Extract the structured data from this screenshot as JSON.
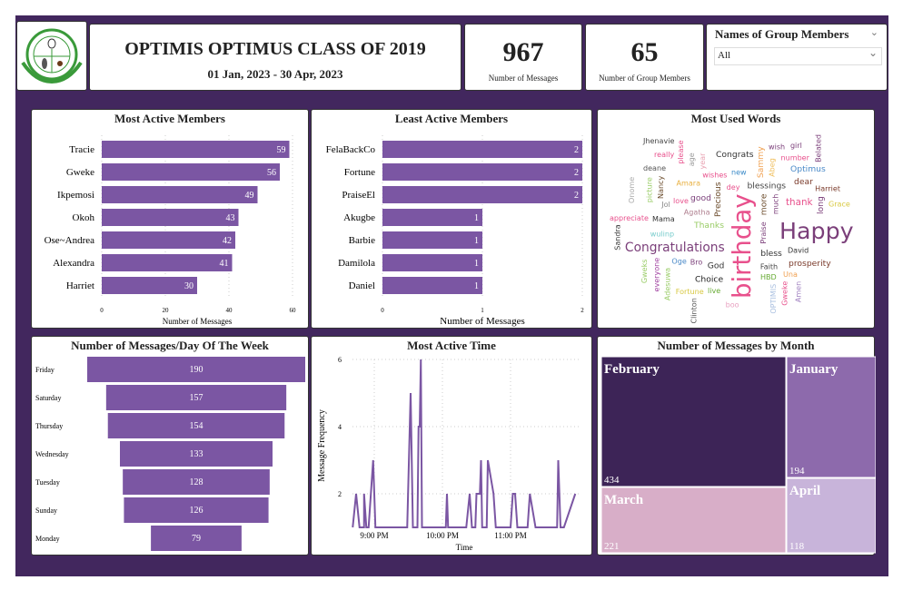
{
  "header": {
    "title": "OPTIMIS OPTIMUS CLASS OF 2019",
    "date_range": "01 Jan, 2023 - 30 Apr, 2023",
    "logo_text": "AEBSA UNIBEN"
  },
  "kpis": [
    {
      "value": "967",
      "label": "Number of Messages"
    },
    {
      "value": "65",
      "label": "Number of Group Members"
    }
  ],
  "slicer": {
    "title": "Names of Group Members",
    "value": "All"
  },
  "chart_data": [
    {
      "type": "bar",
      "orientation": "horizontal",
      "title": "Most Active Members",
      "xlabel": "Number of Messages",
      "categories": [
        "Tracie",
        "Gweke",
        "Ikpemosi",
        "Okoh",
        "Ose~Andrea",
        "Alexandra",
        "Harriet"
      ],
      "values": [
        59,
        56,
        49,
        43,
        42,
        41,
        30
      ],
      "xlim": [
        0,
        60
      ],
      "xticks": [
        0,
        20,
        40,
        60
      ],
      "color": "#7b56a3",
      "grid": true
    },
    {
      "type": "bar",
      "orientation": "horizontal",
      "title": "Least Active Members",
      "xlabel": "Number of Messages",
      "categories": [
        "FelaBackCo",
        "Fortune",
        "PraiseEl",
        "Akugbe",
        "Barbie",
        "Damilola",
        "Daniel"
      ],
      "values": [
        2,
        2,
        2,
        1,
        1,
        1,
        1
      ],
      "xlim": [
        0,
        2
      ],
      "xticks": [
        0,
        1,
        2
      ],
      "color": "#7b56a3",
      "grid": true
    },
    {
      "type": "bar",
      "orientation": "horizontal-funnel",
      "title": "Number of Messages/Day Of The Week",
      "categories": [
        "Friday",
        "Saturday",
        "Thursday",
        "Wednesday",
        "Tuesday",
        "Sunday",
        "Monday"
      ],
      "values": [
        190,
        157,
        154,
        133,
        128,
        126,
        79
      ],
      "color": "#7b56a3"
    },
    {
      "type": "line",
      "title": "Most Active Time",
      "xlabel": "Time",
      "ylabel": "Message Frequency",
      "xticks": [
        "9:00 PM",
        "10:00 PM",
        "11:00 PM"
      ],
      "yticks": [
        2,
        4,
        6
      ],
      "grid": true,
      "color": "#7b56a3",
      "points": [
        [
          "8:41 PM",
          1
        ],
        [
          "8:44 PM",
          2
        ],
        [
          "8:47 PM",
          1
        ],
        [
          "8:51 PM",
          1
        ],
        [
          "8:51 PM",
          2
        ],
        [
          "8:53 PM",
          1
        ],
        [
          "8:55 PM",
          1
        ],
        [
          "8:59 PM",
          3
        ],
        [
          "9:01 PM",
          1
        ],
        [
          "9:29 PM",
          1
        ],
        [
          "9:32 PM",
          5
        ],
        [
          "9:34 PM",
          1
        ],
        [
          "9:38 PM",
          1
        ],
        [
          "9:39 PM",
          4
        ],
        [
          "9:40 PM",
          4
        ],
        [
          "9:41 PM",
          6
        ],
        [
          "9:42 PM",
          1
        ],
        [
          "10:03 PM",
          1
        ],
        [
          "10:04 PM",
          2
        ],
        [
          "10:05 PM",
          1
        ],
        [
          "10:21 PM",
          1
        ],
        [
          "10:24 PM",
          2
        ],
        [
          "10:26 PM",
          1
        ],
        [
          "10:29 PM",
          1
        ],
        [
          "10:30 PM",
          2
        ],
        [
          "10:33 PM",
          2
        ],
        [
          "10:34 PM",
          3
        ],
        [
          "10:35 PM",
          1
        ],
        [
          "10:39 PM",
          1
        ],
        [
          "10:40 PM",
          3
        ],
        [
          "10:45 PM",
          2
        ],
        [
          "10:47 PM",
          1
        ],
        [
          "11:00 PM",
          1
        ],
        [
          "11:02 PM",
          2
        ],
        [
          "11:04 PM",
          2
        ],
        [
          "11:06 PM",
          1
        ],
        [
          "11:15 PM",
          1
        ],
        [
          "11:17 PM",
          2
        ],
        [
          "11:22 PM",
          1
        ],
        [
          "11:41 PM",
          1
        ],
        [
          "11:42 PM",
          3
        ],
        [
          "11:44 PM",
          1
        ],
        [
          "11:47 PM",
          1
        ],
        [
          "11:57 PM",
          2
        ]
      ]
    },
    {
      "type": "treemap",
      "title": "Number of Messages by Month",
      "categories": [
        "February",
        "January",
        "March",
        "April"
      ],
      "values": [
        434,
        194,
        221,
        118
      ],
      "colors": [
        "#3d2457",
        "#8d6aac",
        "#d8aec8",
        "#c8b4da"
      ]
    }
  ],
  "word_cloud": {
    "title": "Most Used Words",
    "words": [
      "Happy",
      "birthday",
      "Congratulations",
      "blessings",
      "thank",
      "Congrats",
      "Optimus",
      "number",
      "dear",
      "Harriet",
      "prosperity",
      "Thanks",
      "Precious",
      "Agatha",
      "good",
      "wishes",
      "love",
      "Grace",
      "long",
      "David",
      "bless",
      "Praise",
      "more",
      "dey",
      "appreciate",
      "Mama",
      "Sandra",
      "Faith",
      "Bro",
      "Oge",
      "live",
      "God",
      "Choice",
      "Fortune",
      "boo",
      "HBD",
      "Una",
      "Gweke",
      "Clinton",
      "Adesuwa",
      "OPTIMIS",
      "Amen",
      "everyone",
      "Gweks",
      "wulinp",
      "Onome",
      "Jol",
      "Nancy",
      "Amara",
      "new",
      "Sammy",
      "Abeg",
      "Belated",
      "deane",
      "Jhenavie",
      "really",
      "please",
      "age",
      "year",
      "picture",
      "wish",
      "much",
      "girl"
    ]
  }
}
